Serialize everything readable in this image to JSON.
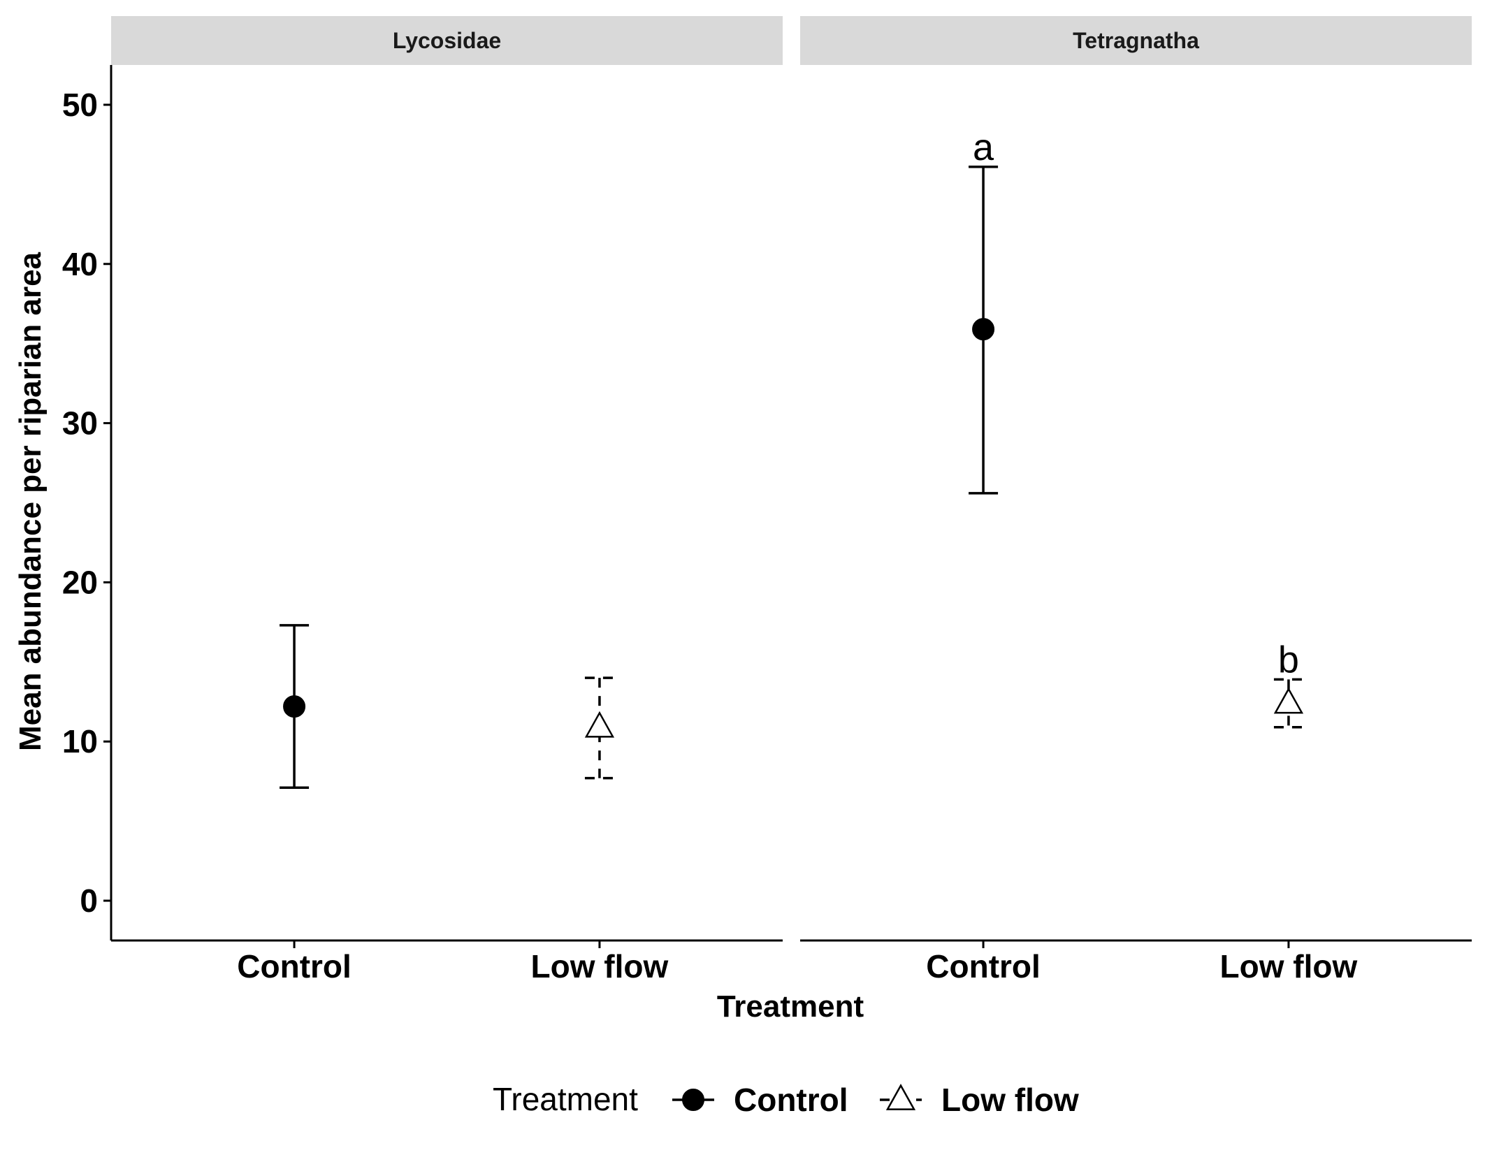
{
  "chart_data": {
    "type": "scatter",
    "subtype": "point-with-errorbars, faceted",
    "facets": [
      "Lycosidae",
      "Tetragnatha"
    ],
    "categories": [
      "Control",
      "Low flow"
    ],
    "xlabel": "Treatment",
    "ylabel": "Mean abundance per riparian area",
    "ylim": [
      -2.5,
      52.5
    ],
    "yticks": [
      0,
      10,
      20,
      30,
      40,
      50
    ],
    "grid": false,
    "legend": {
      "title": "Treatment",
      "position": "bottom",
      "entries": [
        {
          "label": "Control",
          "shape": "filled-circle",
          "linetype": "solid"
        },
        {
          "label": "Low flow",
          "shape": "open-triangle",
          "linetype": "dashed"
        }
      ]
    },
    "series": [
      {
        "name": "Control",
        "shape": "filled-circle",
        "linetype": "solid",
        "points": [
          {
            "facet": "Lycosidae",
            "x": "Control",
            "y": 12.2,
            "ymin": 7.1,
            "ymax": 17.3,
            "label": ""
          },
          {
            "facet": "Tetragnatha",
            "x": "Control",
            "y": 35.9,
            "ymin": 25.6,
            "ymax": 46.1,
            "label": "a"
          }
        ]
      },
      {
        "name": "Low flow",
        "shape": "open-triangle",
        "linetype": "dashed",
        "points": [
          {
            "facet": "Lycosidae",
            "x": "Low flow",
            "y": 10.9,
            "ymin": 7.7,
            "ymax": 14.0,
            "label": ""
          },
          {
            "facet": "Tetragnatha",
            "x": "Low flow",
            "y": 12.4,
            "ymin": 10.9,
            "ymax": 13.9,
            "label": "b"
          }
        ]
      }
    ]
  }
}
